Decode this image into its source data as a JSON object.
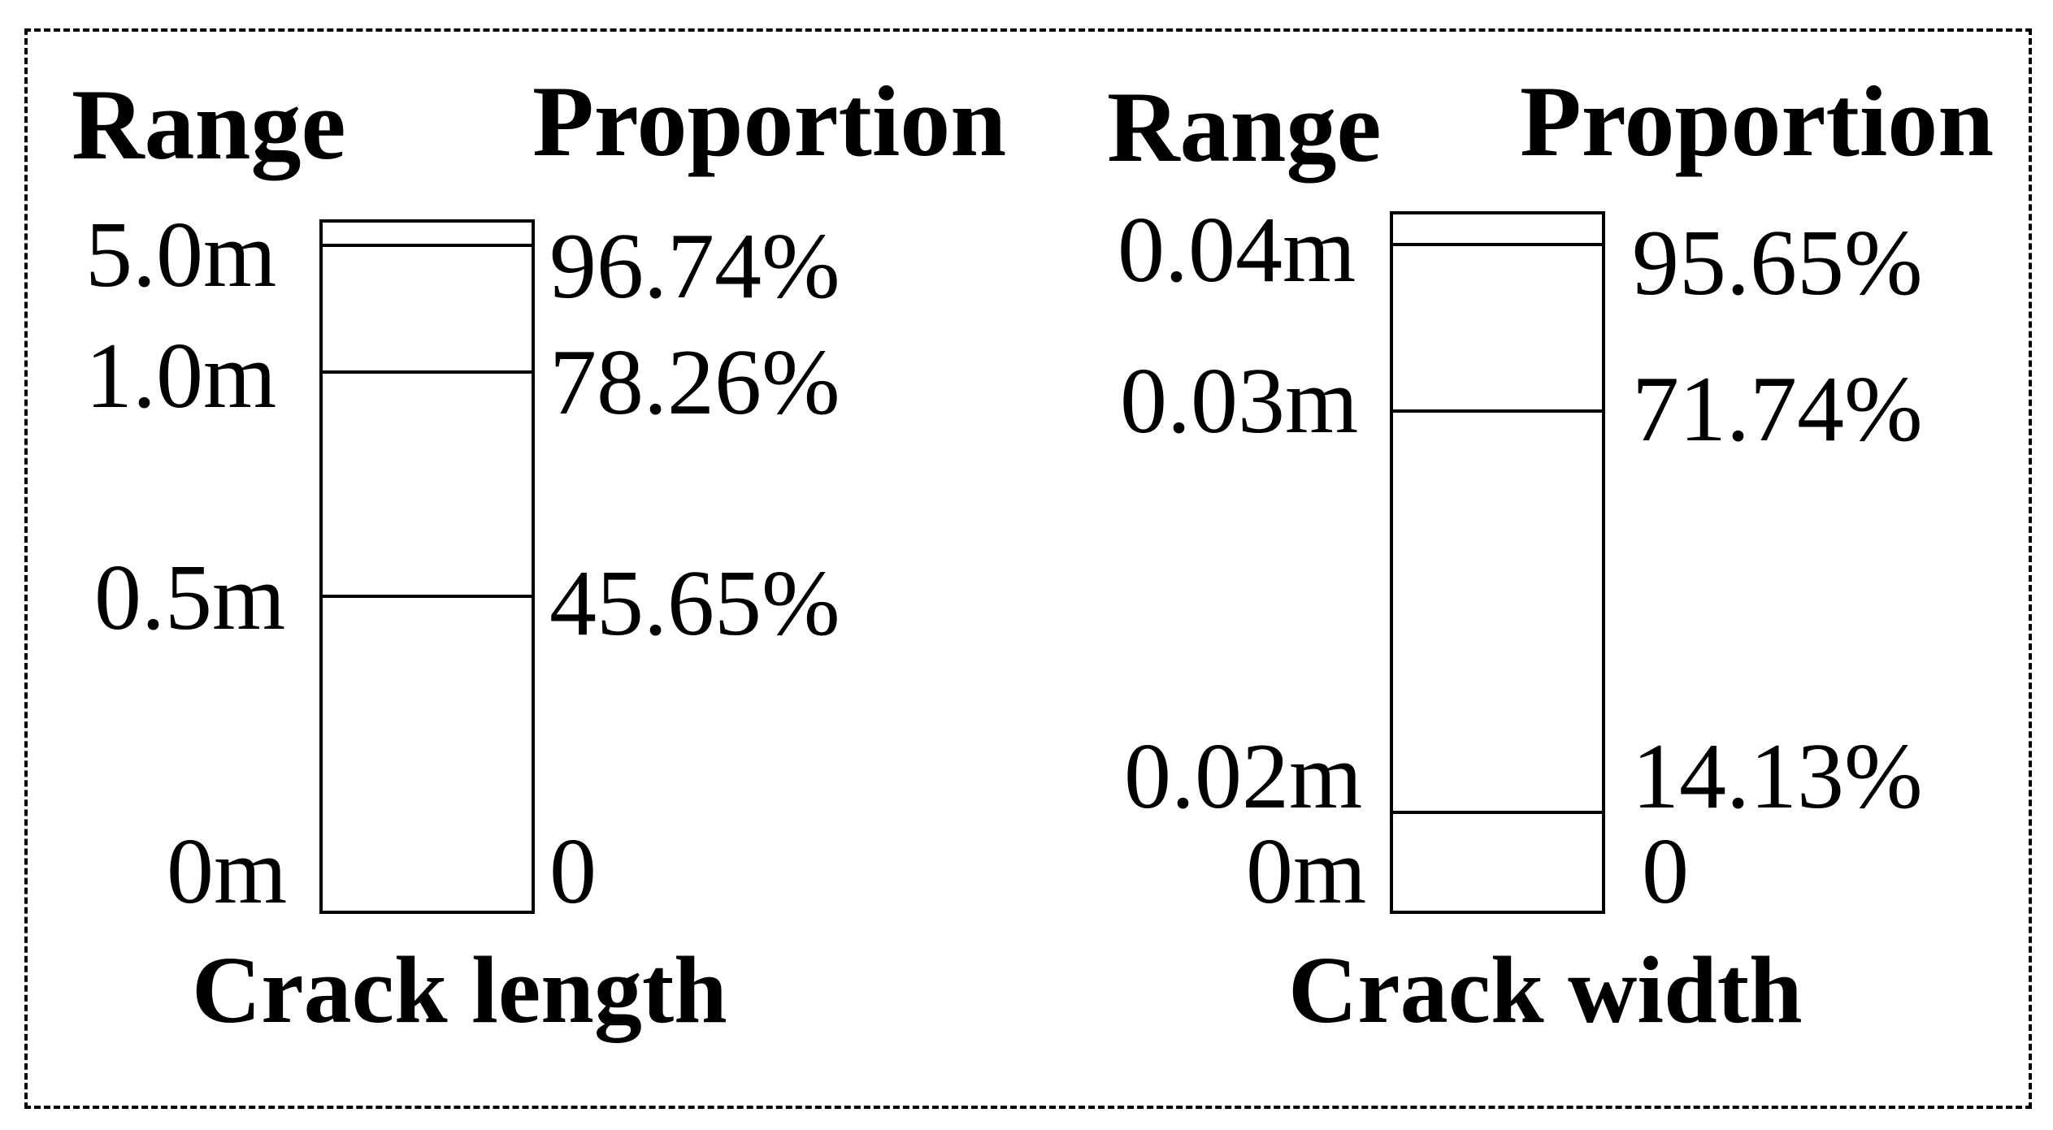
{
  "panels": {
    "length": {
      "range_header": "Range",
      "proportion_header": "Proportion",
      "caption": "Crack length",
      "levels": [
        {
          "range": "0m",
          "proportion": "0",
          "cumulative": 0
        },
        {
          "range": "0.5m",
          "proportion": "45.65%",
          "cumulative": 45.65
        },
        {
          "range": "1.0m",
          "proportion": "78.26%",
          "cumulative": 78.26
        },
        {
          "range": "5.0m",
          "proportion": "96.74%",
          "cumulative": 96.74
        }
      ]
    },
    "width": {
      "range_header": "Range",
      "proportion_header": "Proportion",
      "caption": "Crack width",
      "levels": [
        {
          "range": "0m",
          "proportion": "0",
          "cumulative": 0
        },
        {
          "range": "0.02m",
          "proportion": "14.13%",
          "cumulative": 14.13
        },
        {
          "range": "0.03m",
          "proportion": "71.74%",
          "cumulative": 71.74
        },
        {
          "range": "0.04m",
          "proportion": "95.65%",
          "cumulative": 95.65
        }
      ]
    }
  }
}
